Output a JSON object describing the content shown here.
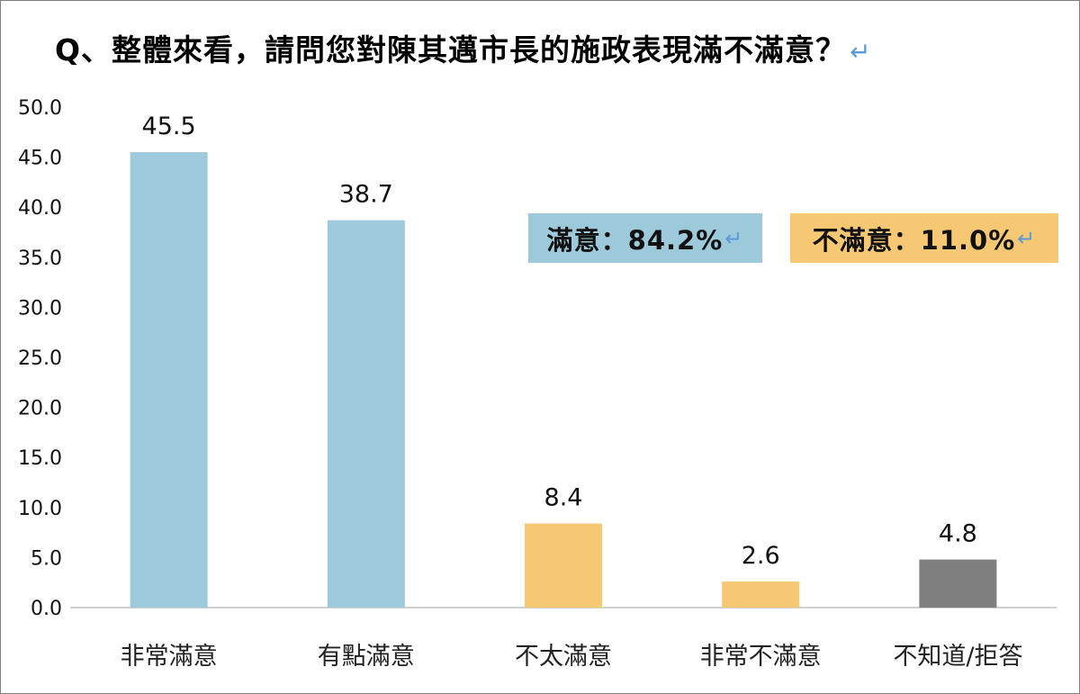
{
  "title": "Q、整體來看，請問您對陳其邁市長的施政表現滿不滿意？",
  "return_mark": "↵",
  "summary": [
    {
      "label": "滿意：84.2%",
      "color": "#9dcadb"
    },
    {
      "label": "不滿意：11.0%",
      "color": "#f7c873"
    }
  ],
  "chart_data": {
    "type": "bar",
    "categories": [
      "非常滿意",
      "有點滿意",
      "不太滿意",
      "非常不滿意",
      "不知道/拒答"
    ],
    "values": [
      45.5,
      38.7,
      8.4,
      2.6,
      4.8
    ],
    "value_labels": [
      "45.5",
      "38.7",
      "8.4",
      "2.6",
      "4.8"
    ],
    "colors": [
      "#9dcadb",
      "#9dcadb",
      "#f7c873",
      "#f7c873",
      "#7f7f7f"
    ],
    "ylim": [
      0,
      50
    ],
    "yticks": [
      "0.0",
      "5.0",
      "10.0",
      "15.0",
      "20.0",
      "25.0",
      "30.0",
      "35.0",
      "40.0",
      "45.0",
      "50.0"
    ],
    "grid": false,
    "legend": "none"
  }
}
